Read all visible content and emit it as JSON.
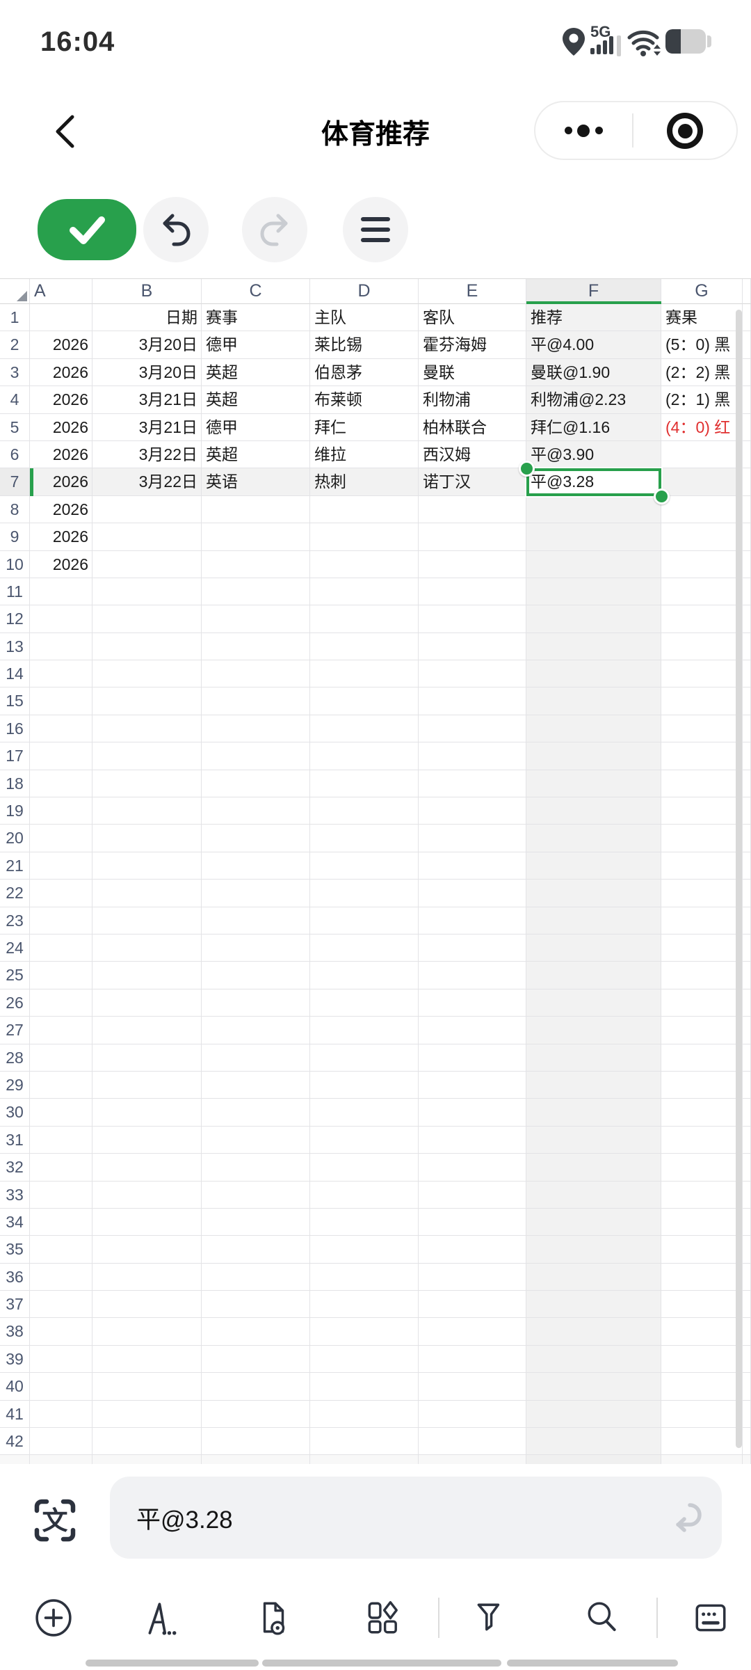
{
  "colors": {
    "accent": "#28a04c",
    "red": "#e02f2f",
    "selection": "#28a04c"
  },
  "status_bar": {
    "time": "16:04",
    "network_label": "5G"
  },
  "nav_bar": {
    "title": "体育推荐"
  },
  "edit_toolbar": {
    "buttons": [
      "confirm",
      "undo",
      "redo",
      "menu"
    ]
  },
  "sheet": {
    "column_letters": [
      "A",
      "B",
      "C",
      "D",
      "E",
      "F",
      "G"
    ],
    "visible_row_count": 42,
    "selected_cell": {
      "column": "F",
      "row": 7,
      "value": "平@3.28"
    },
    "rows": [
      {
        "n": 1,
        "B": "日期",
        "C": "赛事",
        "D": "主队",
        "E": "客队",
        "F": "推荐",
        "G": "赛果"
      },
      {
        "n": 2,
        "A": "2026",
        "B": "3月20日",
        "C": "德甲",
        "D": "莱比锡",
        "E": "霍芬海姆",
        "F": "平@4.00",
        "G": "(5：0) 黑"
      },
      {
        "n": 3,
        "A": "2026",
        "B": "3月20日",
        "C": "英超",
        "D": "伯恩茅",
        "E": "曼联",
        "F": "曼联@1.90",
        "G": "(2：2) 黑"
      },
      {
        "n": 4,
        "A": "2026",
        "B": "3月21日",
        "C": "英超",
        "D": "布莱顿",
        "E": "利物浦",
        "F": "利物浦@2.23",
        "G": "(2：1) 黑"
      },
      {
        "n": 5,
        "A": "2026",
        "B": "3月21日",
        "C": "德甲",
        "D": "拜仁",
        "E": "柏林联合",
        "F": "拜仁@1.16",
        "G": "(4：0) 红",
        "G_red": true
      },
      {
        "n": 6,
        "A": "2026",
        "B": "3月22日",
        "C": "英超",
        "D": "维拉",
        "E": "西汉姆",
        "F": "平@3.90"
      },
      {
        "n": 7,
        "A": "2026",
        "B": "3月22日",
        "C": "英语",
        "D": "热刺",
        "E": "诺丁汉",
        "F": "平@3.28"
      },
      {
        "n": 8,
        "A": "2026"
      },
      {
        "n": 9,
        "A": "2026"
      },
      {
        "n": 10,
        "A": "2026"
      }
    ]
  },
  "formula_bar": {
    "value": "平@3.28"
  },
  "bottom_toolbar": {
    "icons": [
      "add",
      "font",
      "file-preview",
      "shapes",
      "filter",
      "search",
      "keyboard"
    ]
  }
}
